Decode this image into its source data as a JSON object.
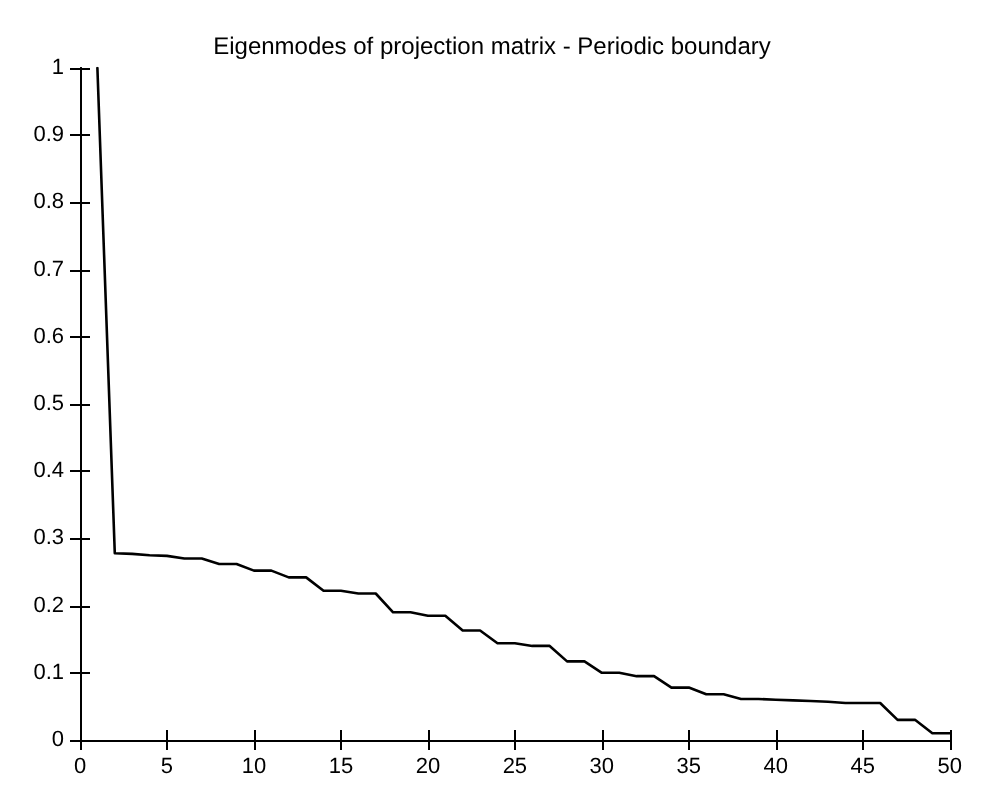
{
  "chart_data": {
    "type": "line",
    "title": "Eigenmodes of projection matrix - Periodic boundary",
    "x": [
      1,
      2,
      3,
      4,
      5,
      6,
      7,
      8,
      9,
      10,
      11,
      12,
      13,
      14,
      15,
      16,
      17,
      18,
      19,
      20,
      21,
      22,
      23,
      24,
      25,
      26,
      27,
      28,
      29,
      30,
      31,
      32,
      33,
      34,
      35,
      36,
      37,
      38,
      39,
      40,
      41,
      42,
      43,
      44,
      45,
      46,
      47,
      48,
      49,
      50
    ],
    "series": [
      {
        "color": "#000000",
        "values": [
          1,
          0.278,
          0.277,
          0.275,
          0.274,
          0.27,
          0.27,
          0.262,
          0.262,
          0.252,
          0.252,
          0.242,
          0.242,
          0.222,
          0.222,
          0.218,
          0.218,
          0.19,
          0.19,
          0.185,
          0.185,
          0.163,
          0.163,
          0.144,
          0.144,
          0.14,
          0.14,
          0.117,
          0.117,
          0.1,
          0.1,
          0.095,
          0.095,
          0.078,
          0.078,
          0.068,
          0.068,
          0.061,
          0.061,
          0.06,
          0.059,
          0.058,
          0.057,
          0.055,
          0.055,
          0.055,
          0.03,
          0.03,
          0.01,
          0.01
        ]
      }
    ],
    "xlim": [
      0,
      50
    ],
    "xticks": [
      0,
      5,
      10,
      15,
      20,
      25,
      30,
      35,
      40,
      45,
      50
    ],
    "ylim": [
      0,
      1
    ],
    "yticks": [
      0,
      0.1,
      0.2,
      0.3,
      0.4,
      0.5,
      0.6,
      0.7,
      0.8,
      0.9,
      1
    ],
    "grid": false,
    "marker": "none",
    "line_style": "solid"
  }
}
